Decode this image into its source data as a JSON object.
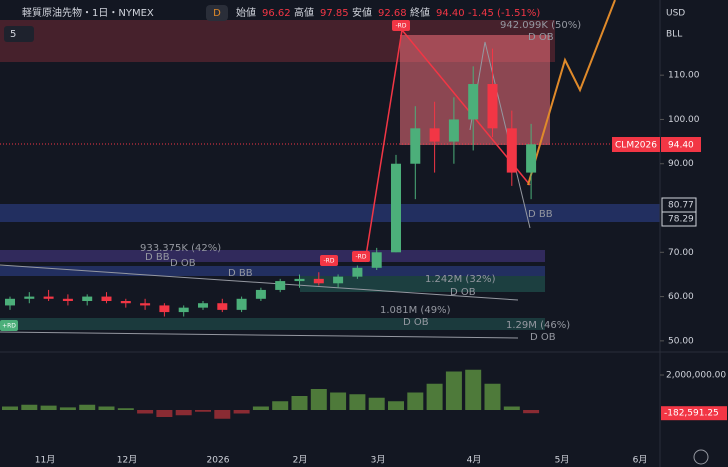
{
  "header": {
    "symbol": "軽質原油先物・1日・NYMEX",
    "badge": "D",
    "open_label": "始値",
    "open": "96.62",
    "high_label": "高値",
    "high": "97.85",
    "low_label": "安値",
    "low": "92.68",
    "close_label": "終値",
    "close": "94.40",
    "change": "-1.45 (-1.51%)",
    "collapse": "5"
  },
  "axis_units": [
    "USD",
    "BLL"
  ],
  "price_tags": {
    "symbol": "CLM2026",
    "last": "94.40",
    "upper": "80.77",
    "lower": "78.29"
  },
  "chart": {
    "type": "candlestick",
    "up_color": "#4caf7a",
    "down_color": "#f23645",
    "ylim": [
      45,
      125
    ],
    "yticks": [
      {
        "value": 110,
        "label": "110.00"
      },
      {
        "value": 100,
        "label": "100.00"
      },
      {
        "value": 90,
        "label": "90.00"
      },
      {
        "value": 70,
        "label": "70.00"
      },
      {
        "value": 60,
        "label": "60.00"
      },
      {
        "value": 50,
        "label": "50.00"
      }
    ],
    "candles": [
      {
        "open": 58,
        "high": 60,
        "low": 57,
        "close": 59.5
      },
      {
        "open": 59.5,
        "high": 61,
        "low": 58.5,
        "close": 60
      },
      {
        "open": 60,
        "high": 61.5,
        "low": 59,
        "close": 59.5
      },
      {
        "open": 59.5,
        "high": 60.5,
        "low": 58,
        "close": 59
      },
      {
        "open": 59,
        "high": 60.5,
        "low": 58,
        "close": 60
      },
      {
        "open": 60,
        "high": 61,
        "low": 58.5,
        "close": 59
      },
      {
        "open": 59,
        "high": 59.5,
        "low": 57.5,
        "close": 58.5
      },
      {
        "open": 58.5,
        "high": 59.5,
        "low": 57,
        "close": 58
      },
      {
        "open": 58,
        "high": 58.5,
        "low": 55.5,
        "close": 56.5
      },
      {
        "open": 56.5,
        "high": 58,
        "low": 55.5,
        "close": 57.5
      },
      {
        "open": 57.5,
        "high": 59,
        "low": 57,
        "close": 58.5
      },
      {
        "open": 58.5,
        "high": 59.5,
        "low": 56.5,
        "close": 57
      },
      {
        "open": 57,
        "high": 60,
        "low": 56.5,
        "close": 59.5
      },
      {
        "open": 59.5,
        "high": 62,
        "low": 59,
        "close": 61.5
      },
      {
        "open": 61.5,
        "high": 64,
        "low": 61,
        "close": 63.5
      },
      {
        "open": 63.5,
        "high": 65,
        "low": 62,
        "close": 64
      },
      {
        "open": 64,
        "high": 65.5,
        "low": 62.5,
        "close": 63
      },
      {
        "open": 63,
        "high": 65,
        "low": 62,
        "close": 64.5
      },
      {
        "open": 64.5,
        "high": 67,
        "low": 64,
        "close": 66.5
      },
      {
        "open": 66.5,
        "high": 71,
        "low": 66,
        "close": 70
      },
      {
        "open": 70,
        "high": 92,
        "low": 70,
        "close": 90
      },
      {
        "open": 90,
        "high": 103,
        "low": 82,
        "close": 98
      },
      {
        "open": 98,
        "high": 104,
        "low": 88,
        "close": 95
      },
      {
        "open": 95,
        "high": 105,
        "low": 90,
        "close": 100
      },
      {
        "open": 100,
        "high": 112,
        "low": 93,
        "close": 108
      },
      {
        "open": 108,
        "high": 116,
        "low": 96,
        "close": 98
      },
      {
        "open": 98,
        "high": 102,
        "low": 85,
        "close": 88
      },
      {
        "open": 88,
        "high": 99,
        "low": 82,
        "close": 94.4
      }
    ],
    "x_labels": [
      "11月",
      "12月",
      "2026",
      "2月",
      "3月",
      "4月",
      "5月",
      "6月"
    ]
  },
  "oscillator": {
    "ylim": [
      -1000000,
      3000000
    ],
    "yticks": [
      {
        "value": 2000000,
        "label": "2,000,000.00"
      }
    ],
    "values": [
      200000,
      300000,
      250000,
      150000,
      300000,
      200000,
      100000,
      -200000,
      -400000,
      -300000,
      -100000,
      -500000,
      -200000,
      200000,
      500000,
      800000,
      1200000,
      1000000,
      900000,
      700000,
      500000,
      1000000,
      1500000,
      2200000,
      2300000,
      1500000,
      200000,
      -182591.25
    ],
    "last_label": "-182,591.25"
  },
  "annotations": {
    "a1": "942.099K (50%)",
    "a2": "D OB",
    "a3": "933.375K (42%)",
    "a4": "D BB",
    "a5": "D OB",
    "a6": "D BB",
    "a7": "1.242M (32%)",
    "a8": "D OB",
    "a9": "1.081M (49%)",
    "a10": "D OB",
    "a11": "1.29M (46%)",
    "a12": "D OB",
    "a13": "D BB",
    "rd_minus": "-RD",
    "rd_plus": "+RD"
  }
}
